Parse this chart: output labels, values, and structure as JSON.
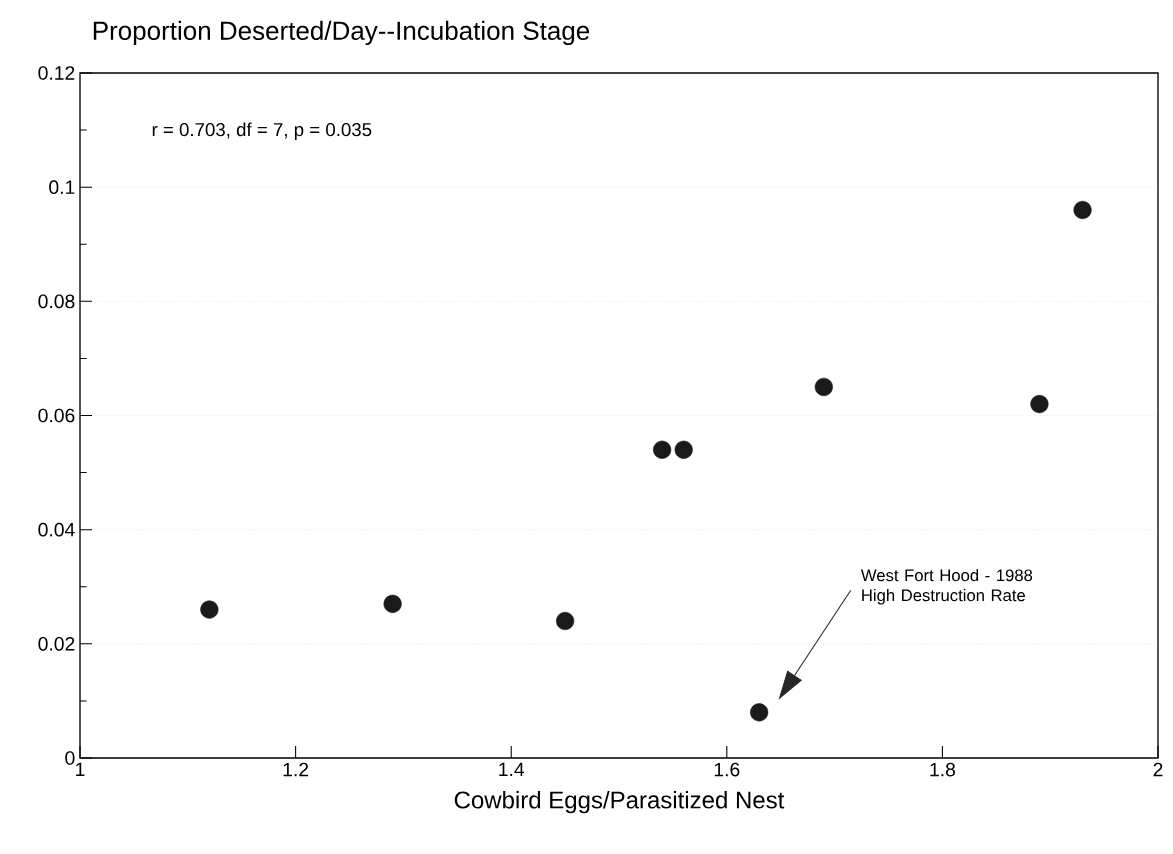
{
  "chart_data": {
    "type": "scatter",
    "title": "Proportion Deserted/Day--Incubation Stage",
    "xlabel": "Cowbird Eggs/Parasitized Nest",
    "x": [
      1.12,
      1.29,
      1.45,
      1.54,
      1.56,
      1.63,
      1.69,
      1.89,
      1.93
    ],
    "values": [
      0.026,
      0.027,
      0.024,
      0.054,
      0.054,
      0.008,
      0.065,
      0.062,
      0.096
    ],
    "color": "#1a1a1a",
    "marker": "circle",
    "xlim": [
      1,
      2
    ],
    "xticks": [
      1,
      1.2,
      1.4,
      1.6,
      1.8,
      2
    ],
    "ylim": [
      0,
      0.12
    ],
    "yticks": [
      0,
      0.02,
      0.04,
      0.06,
      0.08,
      0.1,
      0.12
    ],
    "grid": "y",
    "annotations": [
      "r = 0.703,  df = 7,  p = 0.035",
      "West Fort Hood - 1988 High Destruction Rate"
    ]
  }
}
